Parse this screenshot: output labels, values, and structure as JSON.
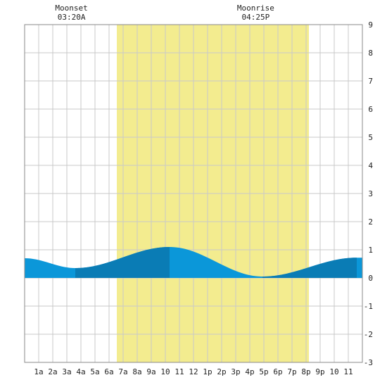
{
  "header": {
    "moonset": {
      "label": "Moonset",
      "time": "03:20A"
    },
    "moonrise": {
      "label": "Moonrise",
      "time": "04:25P"
    }
  },
  "colors": {
    "daylight": "#f3ec8f",
    "tide_light": "#0b97d9",
    "tide_dark": "#0a7cb5",
    "grid": "#c9c9c9",
    "frame": "#888888"
  },
  "chart_data": {
    "type": "area",
    "title": "",
    "xlabel": "",
    "ylabel": "",
    "xlim": [
      0,
      24
    ],
    "ylim": [
      -3,
      9
    ],
    "x_ticks": [
      {
        "x": 1,
        "label": "1a"
      },
      {
        "x": 2,
        "label": "2a"
      },
      {
        "x": 3,
        "label": "3a"
      },
      {
        "x": 4,
        "label": "4a"
      },
      {
        "x": 5,
        "label": "5a"
      },
      {
        "x": 6,
        "label": "6a"
      },
      {
        "x": 7,
        "label": "7a"
      },
      {
        "x": 8,
        "label": "8a"
      },
      {
        "x": 9,
        "label": "9a"
      },
      {
        "x": 10,
        "label": "10"
      },
      {
        "x": 11,
        "label": "11"
      },
      {
        "x": 12,
        "label": "12"
      },
      {
        "x": 13,
        "label": "1p"
      },
      {
        "x": 14,
        "label": "2p"
      },
      {
        "x": 15,
        "label": "3p"
      },
      {
        "x": 16,
        "label": "4p"
      },
      {
        "x": 17,
        "label": "5p"
      },
      {
        "x": 18,
        "label": "6p"
      },
      {
        "x": 19,
        "label": "7p"
      },
      {
        "x": 20,
        "label": "8p"
      },
      {
        "x": 21,
        "label": "9p"
      },
      {
        "x": 22,
        "label": "10"
      },
      {
        "x": 23,
        "label": "11"
      }
    ],
    "y_ticks": [
      {
        "y": 9,
        "label": "9"
      },
      {
        "y": 8,
        "label": "8"
      },
      {
        "y": 7,
        "label": "7"
      },
      {
        "y": 6,
        "label": "6"
      },
      {
        "y": 5,
        "label": "5"
      },
      {
        "y": 4,
        "label": "4"
      },
      {
        "y": 3,
        "label": "3"
      },
      {
        "y": 2,
        "label": "2"
      },
      {
        "y": 1,
        "label": "1"
      },
      {
        "y": 0,
        "label": "0"
      },
      {
        "y": -1,
        "label": "-1"
      },
      {
        "y": -2,
        "label": "-2"
      },
      {
        "y": -3,
        "label": "-3"
      }
    ],
    "daylight": {
      "start": 6.55,
      "end": 20.2
    },
    "moonset_x": 3.33,
    "moonrise_x": 16.42,
    "tide": {
      "extrema": [
        {
          "time": 0.0,
          "height": 0.7
        },
        {
          "time": 3.6,
          "height": 0.35
        },
        {
          "time": 10.3,
          "height": 1.1
        },
        {
          "time": 16.9,
          "height": 0.05
        },
        {
          "time": 23.6,
          "height": 0.72
        }
      ],
      "dark_bands": [
        [
          3.6,
          10.3
        ],
        [
          16.9,
          23.6
        ]
      ]
    }
  }
}
